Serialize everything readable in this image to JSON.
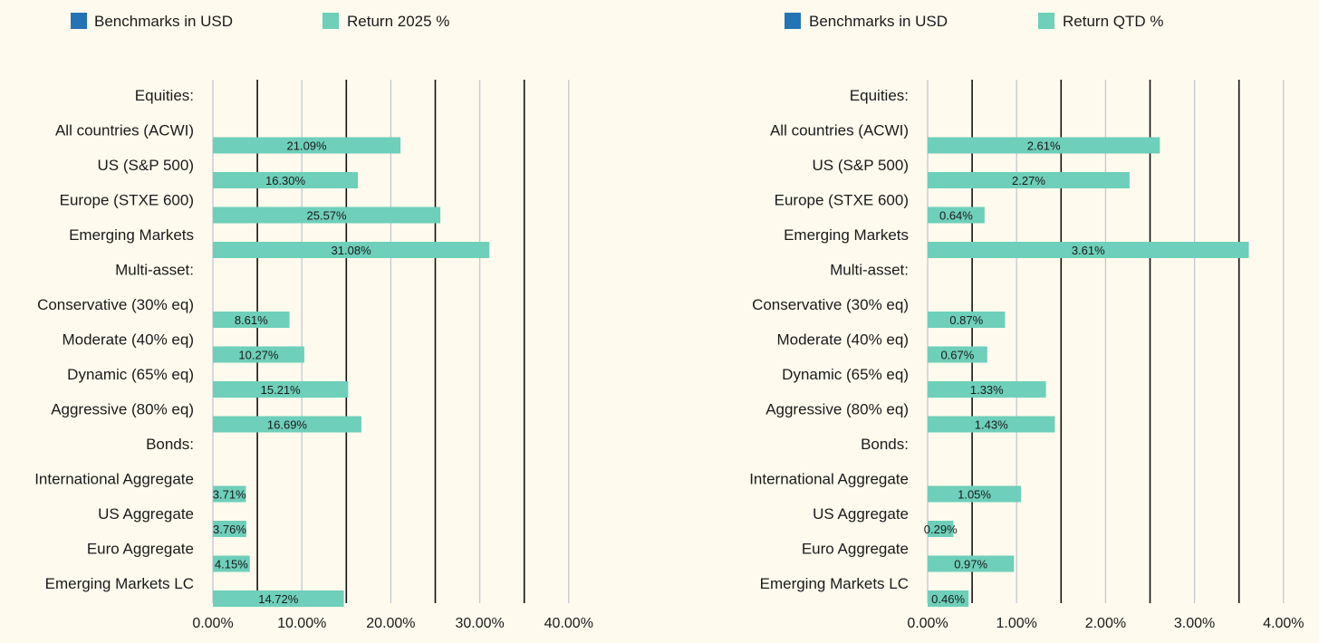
{
  "chart_data": [
    {
      "type": "bar",
      "orientation": "horizontal",
      "legend": [
        {
          "label": "Benchmarks in USD",
          "color": "#2474b5"
        },
        {
          "label": "Return 2025 %",
          "color": "#6ecfba"
        }
      ],
      "categories": [
        "Equities:",
        "All countries (ACWI)",
        "US (S&P 500)",
        "Europe (STXE 600)",
        "Emerging Markets",
        "Multi-asset:",
        "Conservative (30% eq)",
        "Moderate (40% eq)",
        "Dynamic (65% eq)",
        "Aggressive (80% eq)",
        "Bonds:",
        "International Aggregate",
        "US Aggregate",
        "Euro Aggregate",
        "Emerging Markets LC"
      ],
      "values": [
        null,
        21.09,
        16.3,
        25.57,
        31.08,
        null,
        8.61,
        10.27,
        15.21,
        16.69,
        null,
        3.71,
        3.76,
        4.15,
        14.72
      ],
      "labels": [
        "",
        "21.09%",
        "16.30%",
        "25.57%",
        "31.08%",
        "",
        "8.61%",
        "10.27%",
        "15.21%",
        "16.69%",
        "",
        "3.71%",
        "3.76%",
        "4.15%",
        "14.72%"
      ],
      "xlim": [
        0,
        40
      ],
      "xticks": [
        0,
        10,
        20,
        30,
        40
      ],
      "xticklabels": [
        "0.00%",
        "10.00%",
        "20.00%",
        "30.00%",
        "40.00%"
      ],
      "minor_gridlines": [
        5,
        15,
        25,
        35
      ]
    },
    {
      "type": "bar",
      "orientation": "horizontal",
      "legend": [
        {
          "label": "Benchmarks in USD",
          "color": "#2474b5"
        },
        {
          "label": "Return QTD %",
          "color": "#6ecfba"
        }
      ],
      "categories": [
        "Equities:",
        "All countries (ACWI)",
        "US (S&P 500)",
        "Europe (STXE 600)",
        "Emerging Markets",
        "Multi-asset:",
        "Conservative (30% eq)",
        "Moderate (40% eq)",
        "Dynamic (65% eq)",
        "Aggressive (80% eq)",
        "Bonds:",
        "International Aggregate",
        "US Aggregate",
        "Euro Aggregate",
        "Emerging Markets LC"
      ],
      "values": [
        null,
        2.61,
        2.27,
        0.64,
        3.61,
        null,
        0.87,
        0.67,
        1.33,
        1.43,
        null,
        1.05,
        0.29,
        0.97,
        0.46
      ],
      "labels": [
        "",
        "2.61%",
        "2.27%",
        "0.64%",
        "3.61%",
        "",
        "0.87%",
        "0.67%",
        "1.33%",
        "1.43%",
        "",
        "1.05%",
        "0.29%",
        "0.97%",
        "0.46%"
      ],
      "xlim": [
        0,
        4
      ],
      "xticks": [
        0,
        1,
        2,
        3,
        4
      ],
      "xticklabels": [
        "0.00%",
        "1.00%",
        "2.00%",
        "3.00%",
        "4.00%"
      ],
      "minor_gridlines": [
        0.5,
        1.5,
        2.5,
        3.5
      ]
    }
  ]
}
